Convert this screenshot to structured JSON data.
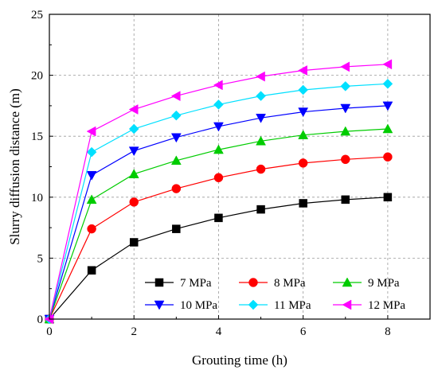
{
  "chart_data": {
    "type": "line",
    "title": "",
    "xlabel": "Grouting time (h)",
    "ylabel": "Slurry diffusion distance (m)",
    "xlim": [
      0,
      9
    ],
    "ylim": [
      0,
      25
    ],
    "xticks": [
      0,
      2,
      4,
      6,
      8
    ],
    "yticks": [
      0,
      5,
      10,
      15,
      20,
      25
    ],
    "x_tick_labels": [
      "0",
      "2",
      "4",
      "6",
      "8"
    ],
    "y_tick_labels": [
      "0",
      "5",
      "10",
      "15",
      "20",
      "25"
    ],
    "grid": true,
    "legend_position": "bottom-right",
    "x": [
      0,
      1,
      2,
      3,
      4,
      5,
      6,
      7,
      8
    ],
    "series": [
      {
        "name": "7 MPa",
        "color": "#000000",
        "marker": "square",
        "values": [
          0,
          4.0,
          6.3,
          7.4,
          8.3,
          9.0,
          9.5,
          9.8,
          10.0
        ]
      },
      {
        "name": "8 MPa",
        "color": "#ff0000",
        "marker": "circle",
        "values": [
          0,
          7.4,
          9.6,
          10.7,
          11.6,
          12.3,
          12.8,
          13.1,
          13.3
        ]
      },
      {
        "name": "9 MPa",
        "color": "#00cc00",
        "marker": "triangle-up",
        "values": [
          0,
          9.8,
          11.9,
          13.0,
          13.9,
          14.6,
          15.1,
          15.4,
          15.6
        ]
      },
      {
        "name": "10 MPa",
        "color": "#0000ff",
        "marker": "triangle-down",
        "values": [
          0,
          11.8,
          13.8,
          14.9,
          15.8,
          16.5,
          17.0,
          17.3,
          17.5
        ]
      },
      {
        "name": "11 MPa",
        "color": "#00e0ff",
        "marker": "diamond",
        "values": [
          0,
          13.7,
          15.6,
          16.7,
          17.6,
          18.3,
          18.8,
          19.1,
          19.3
        ]
      },
      {
        "name": "12 MPa",
        "color": "#ff00ff",
        "marker": "triangle-left",
        "values": [
          0,
          15.4,
          17.2,
          18.3,
          19.2,
          19.9,
          20.4,
          20.7,
          20.9
        ]
      }
    ]
  }
}
